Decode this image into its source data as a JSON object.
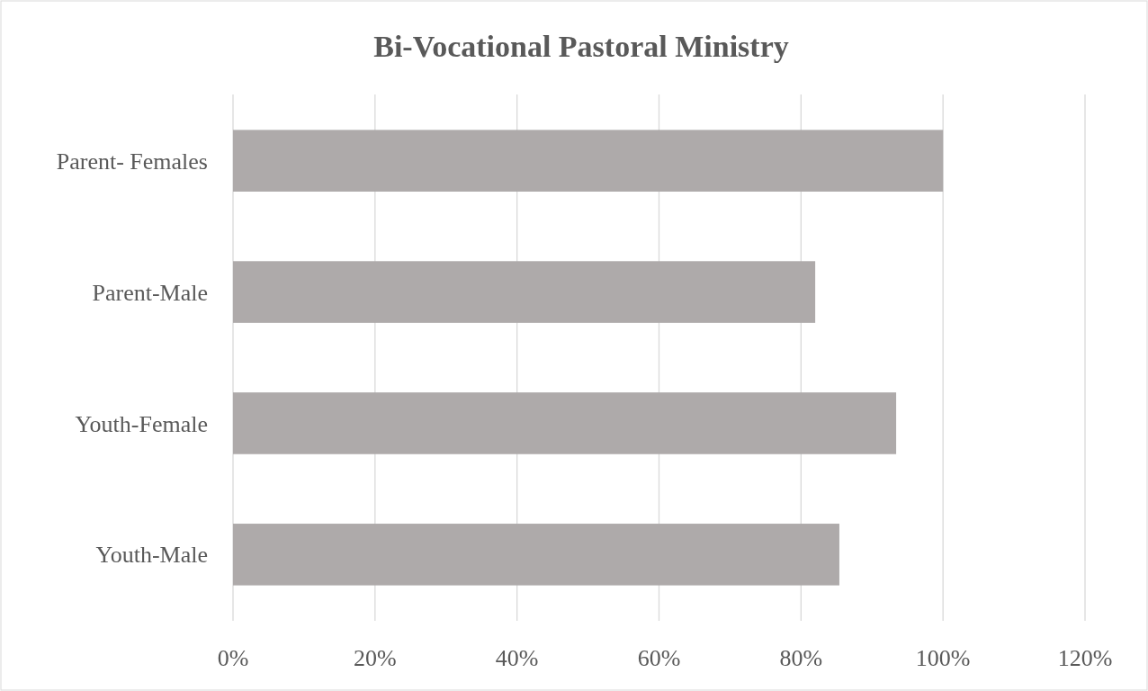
{
  "chart_data": {
    "type": "bar",
    "title": "Bi-Vocational Pastoral Ministry",
    "orientation": "horizontal",
    "categories": [
      "Parent- Females",
      "Parent-Male",
      "Youth-Female",
      "Youth-Male"
    ],
    "values": [
      1.0,
      0.82,
      0.934,
      0.854
    ],
    "color": "#aeaaaa",
    "xlim": [
      0,
      1.2
    ],
    "xticks": [
      {
        "value": 0,
        "label": "0%"
      },
      {
        "value": 0.2,
        "label": "20%"
      },
      {
        "value": 0.4,
        "label": "40%"
      },
      {
        "value": 0.6,
        "label": "60%"
      },
      {
        "value": 0.8,
        "label": "80%"
      },
      {
        "value": 1.0,
        "label": "100%"
      },
      {
        "value": 1.2,
        "label": "120%"
      }
    ],
    "grid": "x"
  }
}
